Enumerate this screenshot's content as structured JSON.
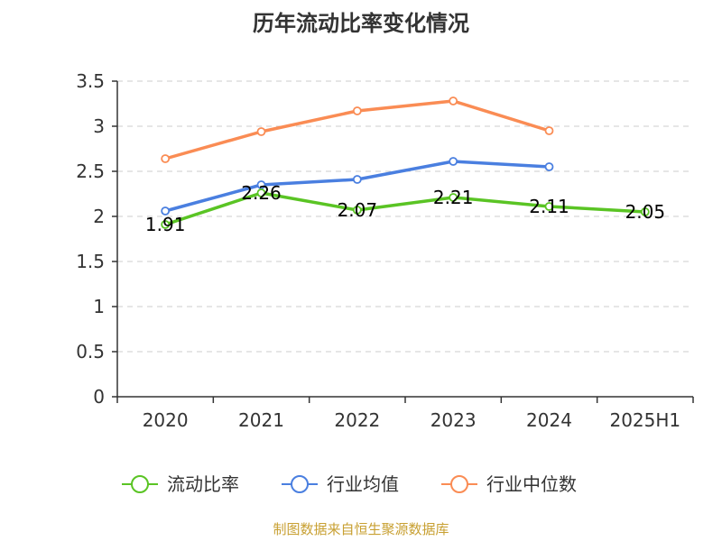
{
  "chart_data": {
    "type": "line",
    "title": "历年流动比率变化情况",
    "categories": [
      "2020",
      "2021",
      "2022",
      "2023",
      "2024",
      "2025H1"
    ],
    "ylim": [
      0,
      3.5
    ],
    "yticks": [
      "0",
      "0.5",
      "1",
      "1.5",
      "2",
      "2.5",
      "3",
      "3.5"
    ],
    "grid": true,
    "legend_position": "bottom",
    "series": [
      {
        "name": "流动比率",
        "color": "#5ac424",
        "values": [
          1.91,
          2.26,
          2.07,
          2.21,
          2.11,
          2.05
        ],
        "labels": [
          "1.91",
          "2.26",
          "2.07",
          "2.21",
          "2.11",
          "2.05"
        ]
      },
      {
        "name": "行业均值",
        "color": "#4a7fe0",
        "values": [
          2.06,
          2.35,
          2.41,
          2.61,
          2.55,
          null
        ]
      },
      {
        "name": "行业中位数",
        "color": "#fa8c54",
        "values": [
          2.64,
          2.94,
          3.17,
          3.28,
          2.95,
          null
        ]
      }
    ],
    "source": "制图数据来自恒生聚源数据库"
  }
}
